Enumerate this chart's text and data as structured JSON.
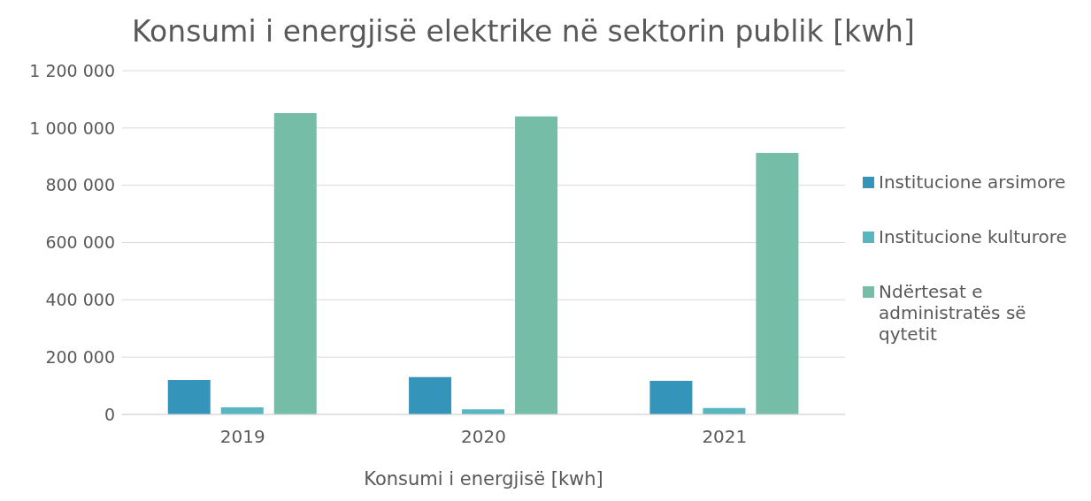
{
  "chart_data": {
    "type": "bar",
    "title": "Konsumi i energjisë elektrike në sektorin publik [kwh]",
    "xlabel": "Konsumi i energjisë [kwh]",
    "categories": [
      "2019",
      "2020",
      "2021"
    ],
    "series": [
      {
        "name": "Institucione arsimore",
        "color": "#3494ba",
        "values": [
          120000,
          130000,
          117000
        ]
      },
      {
        "name": "Institucione kulturore",
        "color": "#58b6c0",
        "values": [
          25000,
          18000,
          22000
        ]
      },
      {
        "name": "Ndërtesat e administratës së qytetit",
        "color": "#75bda7",
        "values": [
          1052000,
          1040000,
          913000
        ]
      }
    ],
    "ylim": [
      0,
      1200000
    ],
    "yticks": [
      0,
      {
        "value": 200000,
        "label": "200 000"
      },
      {
        "value": 400000,
        "label": "400 000"
      },
      {
        "value": 600000,
        "label": "600 000"
      },
      {
        "value": 800000,
        "label": "800 000"
      },
      {
        "value": 1000000,
        "label": "1 000 000"
      },
      {
        "value": 1200000,
        "label": "1 200 000"
      }
    ],
    "grid": "y",
    "legend": "right"
  }
}
